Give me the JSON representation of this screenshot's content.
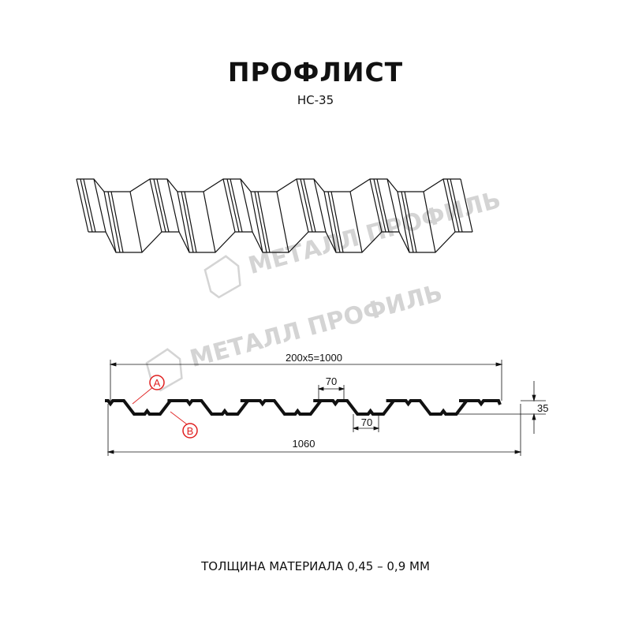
{
  "title": "ПРОФЛИСТ",
  "model": "НС-35",
  "watermark": "МЕТАЛЛ ПРОФИЛЬ",
  "dimensions": {
    "pitch_total": "200x5=1000",
    "top_flat": "70",
    "bottom_flat": "70",
    "height": "35",
    "total_width": "1060"
  },
  "markers": {
    "a": "A",
    "b": "B"
  },
  "footer": "ТОЛЩИНА МАТЕРИАЛА 0,45 – 0,9 ММ",
  "colors": {
    "line": "#111111",
    "marker": "#e02020",
    "watermark": "#d4d4d4"
  }
}
